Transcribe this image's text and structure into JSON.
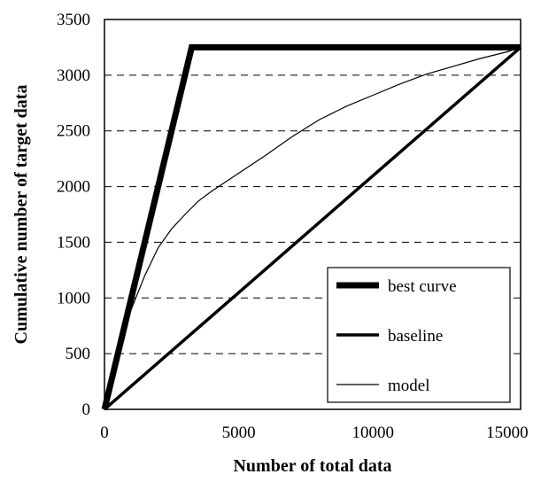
{
  "chart_data": {
    "type": "line",
    "title": "",
    "xlabel": "Number of total data",
    "ylabel": "Cumulative number of target data",
    "xlim": [
      0,
      15500
    ],
    "ylim": [
      0,
      3500
    ],
    "xticks": [
      0,
      5000,
      10000,
      15000
    ],
    "xtick_labels": [
      "0",
      "5000",
      "10000",
      "15000"
    ],
    "yticks": [
      0,
      500,
      1000,
      1500,
      2000,
      2500,
      3000,
      3500
    ],
    "ytick_labels": [
      "0",
      "500",
      "1000",
      "1500",
      "2000",
      "2500",
      "3000",
      "3500"
    ],
    "grid": {
      "y": true,
      "style": "dashed",
      "x": false
    },
    "legend_position": "bottom-right",
    "series": [
      {
        "name": "best curve",
        "color": "#000000",
        "weight": "thick",
        "x": [
          0,
          3250,
          15500
        ],
        "y": [
          0,
          3250,
          3250
        ]
      },
      {
        "name": "baseline",
        "color": "#000000",
        "weight": "medium",
        "x": [
          0,
          15500
        ],
        "y": [
          0,
          3250
        ]
      },
      {
        "name": "model",
        "color": "#000000",
        "weight": "thin",
        "x": [
          0,
          200,
          500,
          1000,
          1500,
          2000,
          2500,
          3000,
          3500,
          4000,
          4500,
          5000,
          6000,
          7000,
          8000,
          9000,
          10000,
          11000,
          12000,
          13000,
          14000,
          15000,
          15500
        ],
        "y": [
          0,
          250,
          500,
          900,
          1200,
          1450,
          1620,
          1750,
          1870,
          1960,
          2040,
          2120,
          2280,
          2450,
          2600,
          2720,
          2820,
          2920,
          3010,
          3080,
          3150,
          3210,
          3250
        ]
      }
    ]
  }
}
